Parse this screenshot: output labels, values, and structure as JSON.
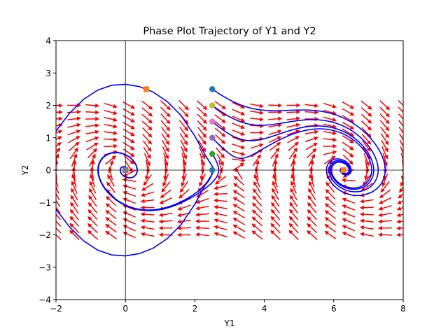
{
  "chart_data": {
    "type": "line",
    "title": "Phase Plot Trajectory of Y1 and Y2",
    "xlabel": "Y1",
    "ylabel": "Y2",
    "xlim": [
      -2,
      8
    ],
    "ylim": [
      -4,
      4
    ],
    "xticks": [
      -2,
      0,
      2,
      4,
      6,
      8
    ],
    "yticks": [
      -4,
      -3,
      -2,
      -1,
      0,
      1,
      2,
      3,
      4
    ],
    "grid": false,
    "legend": "none",
    "colors": {
      "trajectory": "#0000ff",
      "vector_field": "#ff0000",
      "axis_lines": "#000000"
    },
    "vector_field": {
      "system": "Y1' = Y2, Y2' = -sin(Y1) - 0.5*Y2",
      "x_range": [
        -2,
        8
      ],
      "y_range": [
        -2,
        2
      ],
      "nx": 20,
      "ny": 20
    },
    "initial_points": [
      {
        "x": 2.5,
        "y": 0.0,
        "color": "#1f77b4"
      },
      {
        "x": 2.5,
        "y": 0.5,
        "color": "#2ca02c"
      },
      {
        "x": 2.5,
        "y": 1.0,
        "color": "#9467bd"
      },
      {
        "x": 2.5,
        "y": 1.5,
        "color": "#e377c2"
      },
      {
        "x": 2.5,
        "y": 2.0,
        "color": "#bcbd22"
      },
      {
        "x": 2.5,
        "y": 2.5,
        "color": "#1f77b4"
      }
    ],
    "end_points": [
      {
        "x": 0.0,
        "y": 0.0,
        "color": "#ff7f0e"
      },
      {
        "x": 0.0,
        "y": 0.0,
        "color": "#8c564b"
      },
      {
        "x": 0.0,
        "y": 0.0,
        "color": "#7f7f7f"
      },
      {
        "x": 6.28,
        "y": 0.0,
        "color": "#ff7f0e"
      },
      {
        "x": 0.6,
        "y": 2.5,
        "color": "#ff7f0e"
      }
    ],
    "series": [
      {
        "x": [
          -2.0,
          -1.6,
          -1.2,
          -0.8,
          -0.4,
          0.0,
          0.4,
          0.8,
          1.2,
          1.6,
          2.0,
          2.3,
          2.5,
          2.56,
          2.5,
          2.3,
          2.0,
          1.6,
          1.2,
          0.8,
          0.4,
          0.0,
          -0.4,
          -0.8,
          -1.2,
          -1.6,
          -2.0
        ],
        "y": [
          1.21,
          1.77,
          2.19,
          2.47,
          2.62,
          2.65,
          2.58,
          2.41,
          2.12,
          1.69,
          1.05,
          0.46,
          0.12,
          0.0,
          -0.12,
          -0.46,
          -1.05,
          -1.69,
          -2.12,
          -2.41,
          -2.58,
          -2.65,
          -2.62,
          -2.47,
          -2.19,
          -1.77,
          -1.21
        ]
      }
    ]
  }
}
